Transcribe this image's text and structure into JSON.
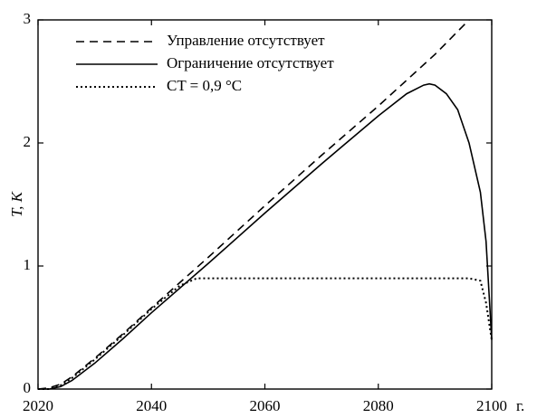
{
  "chart_data": {
    "type": "line",
    "xlabel": "г.",
    "ylabel": "T, K",
    "xlim": [
      2020,
      2100
    ],
    "ylim": [
      0,
      3
    ],
    "xticks": [
      2020,
      2040,
      2060,
      2080,
      2100
    ],
    "yticks": [
      0,
      1,
      2,
      3
    ],
    "legend": "upper left",
    "series": [
      {
        "name": "Управление отсутствует",
        "color": "#000000",
        "dash": "dashed",
        "x": [
          2020,
          2022,
          2024,
          2026,
          2030,
          2035,
          2040,
          2050,
          2060,
          2070,
          2080,
          2090,
          2096
        ],
        "values": [
          0,
          0.01,
          0.04,
          0.1,
          0.25,
          0.45,
          0.66,
          1.07,
          1.49,
          1.9,
          2.3,
          2.72,
          3.0
        ]
      },
      {
        "name": "Ограничение отсутствует",
        "color": "#000000",
        "dash": "solid",
        "x": [
          2020,
          2022,
          2024,
          2026,
          2030,
          2035,
          2040,
          2050,
          2060,
          2070,
          2080,
          2085,
          2088,
          2089,
          2090,
          2092,
          2094,
          2096,
          2098,
          2099,
          2100
        ],
        "values": [
          0,
          0,
          0.02,
          0.07,
          0.21,
          0.41,
          0.62,
          1.02,
          1.43,
          1.83,
          2.22,
          2.4,
          2.47,
          2.48,
          2.47,
          2.4,
          2.27,
          2.0,
          1.6,
          1.2,
          0.4
        ]
      },
      {
        "name": "CT = 0,9 °C",
        "color": "#000000",
        "dash": "dotted",
        "x": [
          2020,
          2022,
          2024,
          2026,
          2030,
          2035,
          2040,
          2045,
          2048,
          2050,
          2060,
          2080,
          2096,
          2098,
          2099,
          2100
        ],
        "values": [
          0,
          0,
          0.03,
          0.09,
          0.24,
          0.44,
          0.65,
          0.84,
          0.9,
          0.9,
          0.9,
          0.9,
          0.9,
          0.88,
          0.7,
          0.4
        ]
      }
    ]
  }
}
